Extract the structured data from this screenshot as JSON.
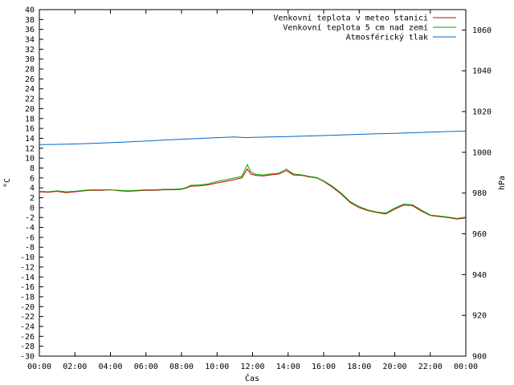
{
  "chart_data": {
    "type": "line",
    "xlabel": "Čas",
    "ylabel": "°C",
    "y2label": "hPa",
    "xlim": [
      0,
      24
    ],
    "ylim": [
      -30,
      40
    ],
    "y2lim": [
      900,
      1070
    ],
    "x_ticks": [
      0,
      2,
      4,
      6,
      8,
      10,
      12,
      14,
      16,
      18,
      20,
      22,
      24
    ],
    "x_tick_labels": [
      "00:00",
      "02:00",
      "04:00",
      "06:00",
      "08:00",
      "10:00",
      "12:00",
      "14:00",
      "16:00",
      "18:00",
      "20:00",
      "22:00",
      "00:00"
    ],
    "y_ticks": [
      40,
      38,
      36,
      34,
      32,
      30,
      28,
      26,
      24,
      22,
      20,
      18,
      16,
      14,
      12,
      10,
      8,
      6,
      4,
      2,
      0,
      -2,
      -4,
      -6,
      -8,
      -10,
      -12,
      -14,
      -16,
      -18,
      -20,
      -22,
      -24,
      -26,
      -28,
      -30
    ],
    "y2_ticks": [
      1060,
      1040,
      1020,
      1000,
      980,
      960,
      940,
      920,
      900
    ],
    "grid": false,
    "legend_position": "top-right",
    "series": [
      {
        "name": "Venkovní teplota v meteo stanici",
        "color": "#cc0000",
        "axis": "y",
        "x": [
          0,
          0.5,
          1,
          1.5,
          2,
          2.5,
          3,
          3.5,
          4,
          4.5,
          5,
          5.5,
          6,
          6.5,
          7,
          7.5,
          8,
          8.3,
          8.5,
          9,
          9.5,
          10,
          10.5,
          11,
          11.4,
          11.7,
          11.9,
          12.2,
          12.6,
          13,
          13.5,
          13.9,
          14.3,
          14.8,
          15.2,
          15.6,
          16,
          16.5,
          17,
          17.5,
          18,
          18.5,
          19,
          19.5,
          20,
          20.5,
          21,
          21.5,
          22,
          22.5,
          23,
          23.5,
          24
        ],
        "values": [
          3.2,
          3.1,
          3.3,
          3.0,
          3.2,
          3.4,
          3.5,
          3.5,
          3.6,
          3.4,
          3.3,
          3.4,
          3.5,
          3.5,
          3.6,
          3.6,
          3.7,
          4.0,
          4.3,
          4.4,
          4.6,
          5.0,
          5.3,
          5.7,
          6.0,
          7.8,
          6.8,
          6.5,
          6.4,
          6.6,
          6.8,
          7.5,
          6.6,
          6.5,
          6.2,
          6.0,
          5.3,
          4.1,
          2.7,
          1.0,
          0.0,
          -0.6,
          -1.0,
          -1.3,
          -0.3,
          0.5,
          0.4,
          -0.7,
          -1.6,
          -1.8,
          -2.0,
          -2.3,
          -2.1
        ]
      },
      {
        "name": "Venkovní teplota 5 cm nad zemí",
        "color": "#00aa00",
        "axis": "y",
        "x": [
          0,
          0.5,
          1,
          1.5,
          2,
          2.5,
          3,
          3.5,
          4,
          4.5,
          5,
          5.5,
          6,
          6.5,
          7,
          7.5,
          8,
          8.3,
          8.5,
          9,
          9.5,
          10,
          10.5,
          11,
          11.4,
          11.7,
          11.9,
          12.2,
          12.6,
          13,
          13.5,
          13.9,
          14.3,
          14.8,
          15.2,
          15.6,
          16,
          16.5,
          17,
          17.5,
          18,
          18.5,
          19,
          19.5,
          20,
          20.5,
          21,
          21.5,
          22,
          22.5,
          23,
          23.5,
          24
        ],
        "values": [
          3.3,
          3.2,
          3.4,
          3.2,
          3.3,
          3.5,
          3.6,
          3.6,
          3.6,
          3.5,
          3.4,
          3.5,
          3.6,
          3.6,
          3.7,
          3.7,
          3.8,
          4.1,
          4.5,
          4.6,
          4.8,
          5.3,
          5.6,
          6.0,
          6.3,
          8.7,
          7.2,
          6.7,
          6.6,
          6.8,
          7.0,
          7.8,
          6.8,
          6.6,
          6.3,
          6.1,
          5.4,
          4.3,
          2.9,
          1.2,
          0.2,
          -0.5,
          -0.9,
          -1.1,
          -0.1,
          0.7,
          0.6,
          -0.5,
          -1.5,
          -1.7,
          -1.9,
          -2.2,
          -1.9
        ]
      },
      {
        "name": "Atmosférický tlak",
        "color": "#0066cc",
        "axis": "y2",
        "x": [
          0,
          1,
          2,
          3,
          4,
          5,
          6,
          7,
          8,
          9,
          10,
          11,
          11.6,
          12,
          13,
          14,
          15,
          16,
          17,
          18,
          19,
          20,
          21,
          22,
          23,
          24
        ],
        "values": [
          1003.8,
          1003.9,
          1004.1,
          1004.4,
          1004.7,
          1005.1,
          1005.5,
          1006.0,
          1006.4,
          1006.8,
          1007.2,
          1007.5,
          1007.2,
          1007.3,
          1007.5,
          1007.7,
          1008.0,
          1008.2,
          1008.5,
          1008.8,
          1009.1,
          1009.3,
          1009.6,
          1009.9,
          1010.2,
          1010.4
        ]
      }
    ]
  }
}
